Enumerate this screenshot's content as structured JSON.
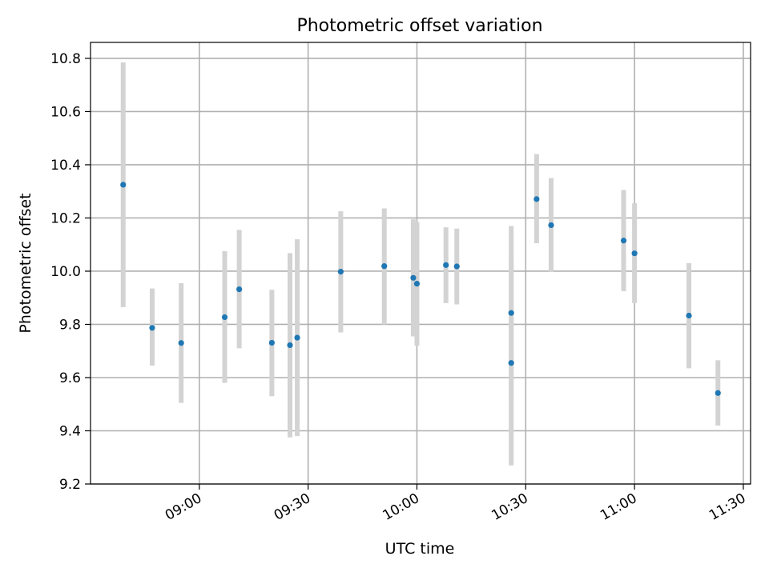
{
  "chart_data": {
    "type": "scatter",
    "title": "Photometric offset variation",
    "xlabel": "UTC time",
    "ylabel": "Photometric offset",
    "x_axis_type": "time",
    "xlim": [
      "08:30",
      "11:32"
    ],
    "ylim": [
      9.2,
      10.86
    ],
    "xticks": [
      "09:00",
      "09:30",
      "10:00",
      "10:30",
      "11:00",
      "11:30"
    ],
    "yticks": [
      9.2,
      9.4,
      9.6,
      9.8,
      10.0,
      10.2,
      10.4,
      10.6,
      10.8
    ],
    "ytick_labels": [
      "9.2",
      "9.4",
      "9.6",
      "9.8",
      "10.0",
      "10.2",
      "10.4",
      "10.6",
      "10.8"
    ],
    "grid": true,
    "series": [
      {
        "marker_color": "#1f77b4",
        "errorbar_color": "#d3d3d3",
        "points": [
          {
            "x": "08:39",
            "y": 10.325,
            "ylow": 9.865,
            "yhigh": 10.785
          },
          {
            "x": "08:47",
            "y": 9.787,
            "ylow": 9.645,
            "yhigh": 9.935
          },
          {
            "x": "08:55",
            "y": 9.73,
            "ylow": 9.505,
            "yhigh": 9.955
          },
          {
            "x": "09:07",
            "y": 9.827,
            "ylow": 9.58,
            "yhigh": 10.075
          },
          {
            "x": "09:11",
            "y": 9.932,
            "ylow": 9.71,
            "yhigh": 10.155
          },
          {
            "x": "09:20",
            "y": 9.731,
            "ylow": 9.53,
            "yhigh": 9.93
          },
          {
            "x": "09:25",
            "y": 9.722,
            "ylow": 9.375,
            "yhigh": 10.068
          },
          {
            "x": "09:27",
            "y": 9.75,
            "ylow": 9.38,
            "yhigh": 10.12
          },
          {
            "x": "09:39",
            "y": 9.998,
            "ylow": 9.77,
            "yhigh": 10.225
          },
          {
            "x": "09:51",
            "y": 10.019,
            "ylow": 9.8,
            "yhigh": 10.236
          },
          {
            "x": "09:59",
            "y": 9.975,
            "ylow": 9.755,
            "yhigh": 10.195
          },
          {
            "x": "10:00",
            "y": 9.953,
            "ylow": 9.72,
            "yhigh": 10.185
          },
          {
            "x": "10:08",
            "y": 10.023,
            "ylow": 9.88,
            "yhigh": 10.165
          },
          {
            "x": "10:11",
            "y": 10.018,
            "ylow": 9.875,
            "yhigh": 10.16
          },
          {
            "x": "10:26",
            "y": 9.843,
            "ylow": 9.515,
            "yhigh": 10.17
          },
          {
            "x": "10:26",
            "y": 9.655,
            "ylow": 9.27,
            "yhigh": 10.04
          },
          {
            "x": "10:33",
            "y": 10.271,
            "ylow": 10.105,
            "yhigh": 10.44
          },
          {
            "x": "10:37",
            "y": 10.173,
            "ylow": 9.998,
            "yhigh": 10.35
          },
          {
            "x": "10:57",
            "y": 10.115,
            "ylow": 9.925,
            "yhigh": 10.305
          },
          {
            "x": "11:00",
            "y": 10.067,
            "ylow": 9.88,
            "yhigh": 10.255
          },
          {
            "x": "11:15",
            "y": 9.833,
            "ylow": 9.635,
            "yhigh": 10.03
          },
          {
            "x": "11:23",
            "y": 9.542,
            "ylow": 9.42,
            "yhigh": 9.665
          }
        ]
      }
    ]
  }
}
